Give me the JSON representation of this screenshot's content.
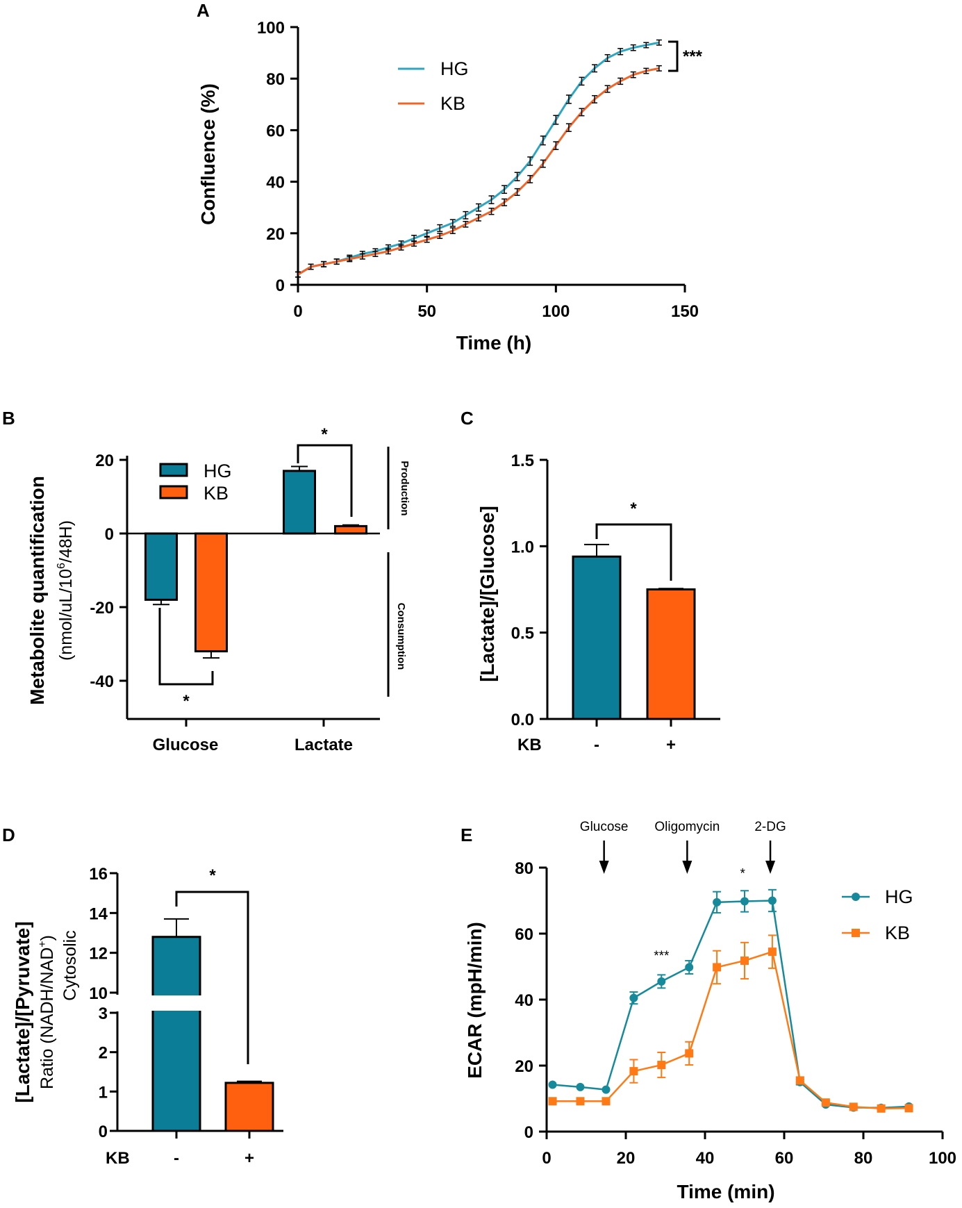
{
  "colors": {
    "hg_line": "#2fa6c1",
    "kb_line": "#f0652a",
    "hg_bar": "#0b7d96",
    "kb_bar": "#ff6010",
    "hg_e": "#168a9a",
    "kb_e": "#ff7a14"
  },
  "chart_data": [
    {
      "panel": "A",
      "type": "line",
      "xlabel": "Time (h)",
      "ylabel": "Confluence (%)",
      "xlim": [
        0,
        150
      ],
      "ylim": [
        0,
        100
      ],
      "xticks": [
        "0",
        "50",
        "100",
        "150"
      ],
      "yticks": [
        "0",
        "20",
        "40",
        "60",
        "80",
        "100"
      ],
      "significance": "***",
      "series": [
        {
          "name": "HG",
          "x": [
            0,
            5,
            10,
            15,
            20,
            25,
            30,
            35,
            40,
            45,
            50,
            55,
            60,
            65,
            70,
            75,
            80,
            85,
            90,
            95,
            100,
            105,
            110,
            115,
            120,
            125,
            130,
            135,
            140
          ],
          "y": [
            4,
            7,
            8,
            9,
            10.5,
            12,
            13,
            14.5,
            16,
            18,
            20,
            22,
            24,
            27,
            30,
            33,
            37,
            42,
            48,
            56,
            64,
            72,
            79,
            84,
            88,
            90.5,
            92,
            93,
            94
          ],
          "err": [
            1,
            1,
            1,
            1,
            1,
            1,
            1,
            1,
            1,
            1.2,
            1.2,
            1.3,
            1.3,
            1.4,
            1.4,
            1.5,
            1.5,
            1.6,
            1.6,
            1.7,
            1.7,
            1.6,
            1.5,
            1.4,
            1.3,
            1.2,
            1.1,
            1,
            1
          ]
        },
        {
          "name": "KB",
          "x": [
            0,
            5,
            10,
            15,
            20,
            25,
            30,
            35,
            40,
            45,
            50,
            55,
            60,
            65,
            70,
            75,
            80,
            85,
            90,
            95,
            100,
            105,
            110,
            115,
            120,
            125,
            130,
            135,
            140
          ],
          "y": [
            4,
            7,
            8,
            9,
            10,
            11,
            12,
            13,
            14.5,
            16,
            17.5,
            19,
            21,
            23.5,
            26,
            28.5,
            32,
            36,
            41,
            47,
            54,
            61,
            67,
            72,
            76,
            79,
            81.5,
            83,
            84
          ],
          "err": [
            1,
            1,
            1,
            1,
            1,
            1,
            1,
            1,
            1,
            1,
            1,
            1,
            1.1,
            1.1,
            1.2,
            1.2,
            1.3,
            1.3,
            1.4,
            1.4,
            1.5,
            1.5,
            1.4,
            1.4,
            1.3,
            1.2,
            1.1,
            1,
            1
          ]
        }
      ]
    },
    {
      "panel": "B",
      "type": "bar",
      "categories": [
        "Glucose",
        "Lactate"
      ],
      "ylabel": "Metabolite quantification",
      "ylabel_sub_pre": "(nmol/uL/10",
      "ylabel_sub_sup": "6",
      "ylabel_sub_post": "/48H)",
      "ylim": [
        -50,
        20
      ],
      "yticks": [
        "20",
        "0",
        "-20",
        "-40"
      ],
      "side_labels": [
        "Production",
        "Consumption"
      ],
      "significance": [
        "*",
        "*"
      ],
      "series": [
        {
          "name": "HG",
          "values": [
            -18,
            17
          ],
          "err": [
            1.3,
            1.2
          ]
        },
        {
          "name": "KB",
          "values": [
            -32,
            2
          ],
          "err": [
            1.8,
            0.3
          ]
        }
      ]
    },
    {
      "panel": "C",
      "type": "bar",
      "categories": [
        "-",
        "+"
      ],
      "xlabel": "KB",
      "ylabel": "[Lactate]/[Glucose]",
      "ylim": [
        0,
        1.5
      ],
      "yticks": [
        "0.0",
        "0.5",
        "1.0",
        "1.5"
      ],
      "values": [
        0.94,
        0.75
      ],
      "err": [
        0.07,
        0.005
      ],
      "significance": "*"
    },
    {
      "panel": "D",
      "type": "bar",
      "categories": [
        "-",
        "+"
      ],
      "xlabel": "KB",
      "ylabel": "[Lactate]/[Pyruvate]",
      "ylabel_line2_pre": "Ratio (NADH/NAD",
      "ylabel_line2_sup": "+",
      "ylabel_line2_post": ")",
      "ylabel_line3": "Cytosolic",
      "axis_break": "3 to 10",
      "yticks": [
        "0",
        "1",
        "2",
        "3",
        "10",
        "12",
        "14",
        "16"
      ],
      "values": [
        12.8,
        1.22
      ],
      "err": [
        0.9,
        0.04
      ],
      "significance": "*"
    },
    {
      "panel": "E",
      "type": "line",
      "xlabel": "Time (min)",
      "ylabel": "ECAR (mpH/min)",
      "xlim": [
        0,
        100
      ],
      "ylim": [
        0,
        80
      ],
      "xticks": [
        "0",
        "20",
        "40",
        "60",
        "80",
        "100"
      ],
      "yticks": [
        "0",
        "20",
        "40",
        "60",
        "80"
      ],
      "injections": [
        {
          "label": "Glucose",
          "x": 14.5
        },
        {
          "label": "Oligomycin",
          "x": 35.5
        },
        {
          "label": "2-DG",
          "x": 56.5
        }
      ],
      "significance": [
        {
          "label": "***",
          "x": 29,
          "y": 52
        },
        {
          "label": "*",
          "x": 49.5,
          "y": 77
        }
      ],
      "series": [
        {
          "name": "HG",
          "marker": "circle",
          "x": [
            1.5,
            8.5,
            15,
            22,
            29,
            36,
            43,
            50,
            57,
            64,
            70.5,
            77.5,
            84.5,
            91.5
          ],
          "y": [
            14.2,
            13.5,
            12.7,
            40.5,
            45.5,
            49.8,
            69.5,
            69.8,
            70,
            15,
            8.2,
            7.3,
            7.2,
            7.6
          ],
          "err": [
            0,
            0,
            0,
            1.8,
            2,
            2,
            3.2,
            3.2,
            3.3,
            0.8,
            0,
            0,
            0,
            0
          ]
        },
        {
          "name": "KB",
          "marker": "square",
          "x": [
            1.5,
            8.5,
            15,
            22,
            29,
            36,
            43,
            50,
            57,
            64,
            70.5,
            77.5,
            84.5,
            91.5
          ],
          "y": [
            9.2,
            9.2,
            9.2,
            18.3,
            20.2,
            23.7,
            49.8,
            51.8,
            54.5,
            15.5,
            8.8,
            7.5,
            7,
            7.1
          ],
          "err": [
            0,
            0,
            0,
            3.5,
            3.8,
            3.5,
            5,
            5.5,
            5,
            1,
            0.5,
            0.4,
            0.4,
            0.4
          ]
        }
      ]
    }
  ]
}
